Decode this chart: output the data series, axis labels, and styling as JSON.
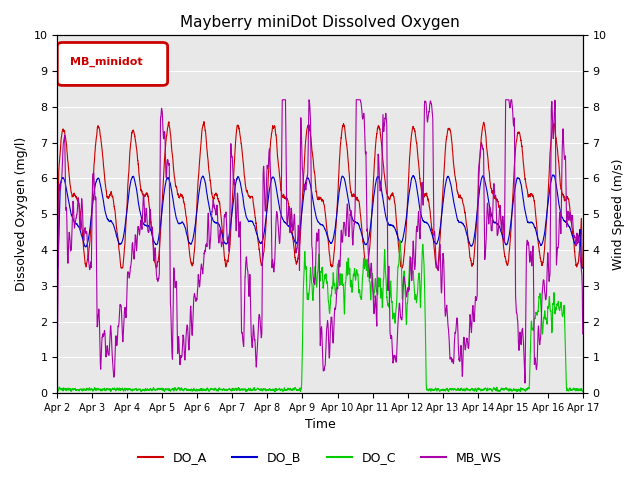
{
  "title": "Mayberry miniDot Dissolved Oxygen",
  "xlabel": "Time",
  "ylabel_left": "Dissolved Oxygen (mg/l)",
  "ylabel_right": "Wind Speed (m/s)",
  "ylim": [
    0.0,
    10.0
  ],
  "yticks": [
    0.0,
    1.0,
    2.0,
    3.0,
    4.0,
    5.0,
    6.0,
    7.0,
    8.0,
    9.0,
    10.0
  ],
  "xticklabels": [
    "Apr 2",
    "Apr 3",
    "Apr 4",
    "Apr 5",
    "Apr 6",
    "Apr 7",
    "Apr 8",
    "Apr 9",
    "Apr 10",
    "Apr 11",
    "Apr 12",
    "Apr 13",
    "Apr 14",
    "Apr 15",
    "Apr 16",
    "Apr 17"
  ],
  "legend_label": "MB_minidot",
  "legend_box_color": "#cc0000",
  "series_colors": {
    "DO_A": "#cc0000",
    "DO_B": "#0000cc",
    "DO_C": "#00cc00",
    "MB_WS": "#aa00aa"
  },
  "background_color": "#e8e8e8",
  "plot_bg_color": "#ffffff",
  "grid_color": "#ffffff",
  "n_points": 3600,
  "seed": 42
}
